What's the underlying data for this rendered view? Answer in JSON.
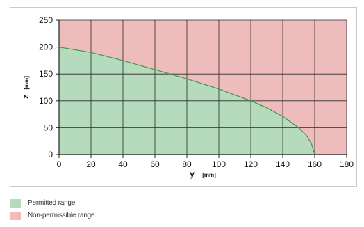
{
  "chart_data": {
    "type": "area",
    "title": "",
    "xlabel": "y",
    "xlabel_unit": "[mm]",
    "ylabel": "z",
    "ylabel_unit": "[mm]",
    "xlim": [
      0,
      180
    ],
    "ylim": [
      0,
      250
    ],
    "x_ticks": [
      0,
      20,
      40,
      60,
      80,
      100,
      120,
      140,
      160,
      180
    ],
    "y_ticks": [
      0,
      50,
      100,
      150,
      200,
      250
    ],
    "grid": true,
    "series": [
      {
        "name": "Permitted range",
        "color": "#b5dbbc",
        "line_color": "#3a9a48",
        "x": [
          0,
          20,
          40,
          60,
          80,
          100,
          120,
          130,
          140,
          150,
          155,
          158,
          160
        ],
        "y": [
          200,
          190,
          175,
          158,
          141,
          122,
          100,
          87,
          71,
          50,
          35,
          20,
          0
        ]
      }
    ],
    "background_region": {
      "name": "Non-permissible range",
      "color": "#efbcbc"
    },
    "legend_position": "bottom-left"
  }
}
